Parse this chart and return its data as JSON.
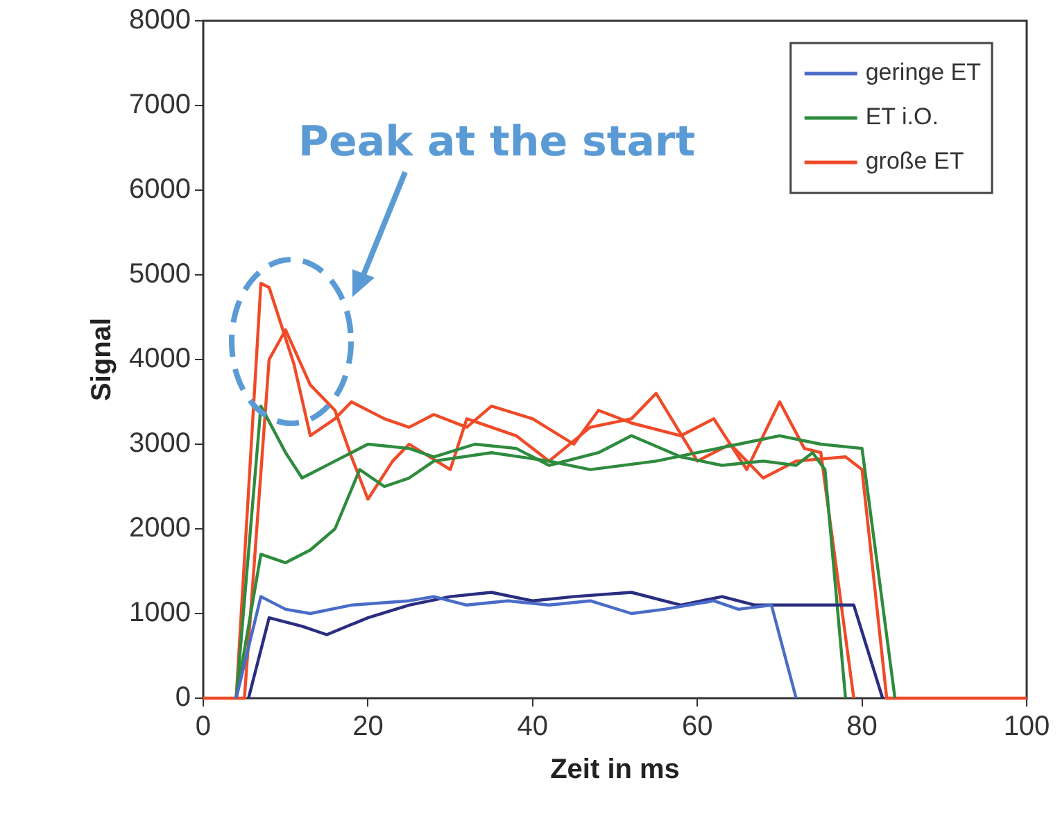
{
  "chart_data": {
    "type": "line",
    "xlabel": "Zeit in ms",
    "ylabel": "Signal",
    "xlim": [
      0,
      100
    ],
    "xticks": [
      0,
      20,
      40,
      60,
      80,
      100
    ],
    "ylim": [
      0,
      8000
    ],
    "yticks": [
      0,
      1000,
      2000,
      3000,
      4000,
      5000,
      6000,
      7000,
      8000
    ],
    "grid": false,
    "legend": "top right",
    "marker": "none",
    "line_style": "solid",
    "annotations": [
      "Peak at the start"
    ],
    "series": [
      {
        "name": "geringe ET",
        "color": "#4a6cc8",
        "x": [
          4,
          7,
          10,
          13,
          18,
          25,
          28,
          32,
          37,
          42,
          47,
          52,
          56,
          62,
          65,
          69,
          72
        ],
        "values": [
          0,
          1200,
          1050,
          1000,
          1100,
          1150,
          1200,
          1100,
          1150,
          1100,
          1150,
          1000,
          1050,
          1150,
          1050,
          1100,
          0
        ]
      },
      {
        "color": "#2a2e80",
        "x": [
          5.5,
          8,
          12,
          15,
          20,
          25,
          30,
          35,
          40,
          45,
          52,
          58,
          63,
          67,
          72,
          79,
          82.5
        ],
        "values": [
          0,
          950,
          850,
          750,
          950,
          1100,
          1200,
          1250,
          1150,
          1200,
          1250,
          1100,
          1200,
          1100,
          1100,
          1100,
          0
        ]
      },
      {
        "name": "ET i.O.",
        "color": "#2e8b3e",
        "x": [
          4,
          7,
          10,
          12,
          16,
          20,
          25,
          28,
          33,
          38,
          42,
          48,
          52,
          58,
          63,
          68,
          72,
          74,
          75.5,
          78
        ],
        "values": [
          0,
          3450,
          2900,
          2600,
          2800,
          3000,
          2950,
          2850,
          3000,
          2950,
          2750,
          2900,
          3100,
          2850,
          2750,
          2800,
          2750,
          2900,
          2700,
          0
        ]
      },
      {
        "color": "#2e8b3e",
        "x": [
          4,
          7,
          10,
          13,
          16,
          19,
          22,
          25,
          28,
          35,
          42,
          47,
          55,
          60,
          65,
          70,
          75,
          80,
          84
        ],
        "values": [
          0,
          1700,
          1600,
          1750,
          2000,
          2700,
          2500,
          2600,
          2800,
          2900,
          2800,
          2700,
          2800,
          2900,
          3000,
          3100,
          3000,
          2950,
          0
        ]
      },
      {
        "name": "große ET",
        "color": "#f04a28",
        "x": [
          4,
          7,
          8,
          11,
          13,
          16,
          18,
          22,
          25,
          28,
          32,
          35,
          40,
          45,
          48,
          52,
          58,
          62,
          66,
          70,
          73,
          75,
          79
        ],
        "values": [
          0,
          4900,
          4850,
          3950,
          3100,
          3300,
          3500,
          3300,
          3200,
          3350,
          3200,
          3450,
          3300,
          3000,
          3400,
          3250,
          3100,
          3300,
          2700,
          3500,
          2950,
          2900,
          0
        ]
      },
      {
        "color": "#f04a28",
        "x": [
          0,
          5,
          8,
          10,
          13,
          16,
          18,
          20,
          23,
          25,
          30,
          32,
          38,
          42,
          47,
          52,
          55,
          60,
          64,
          68,
          72,
          78,
          80,
          83,
          100
        ],
        "values": [
          0,
          0,
          4000,
          4350,
          3700,
          3400,
          2850,
          2350,
          2800,
          3000,
          2700,
          3300,
          3100,
          2800,
          3200,
          3300,
          3600,
          2800,
          3000,
          2600,
          2800,
          2850,
          2700,
          0,
          0
        ]
      }
    ]
  }
}
